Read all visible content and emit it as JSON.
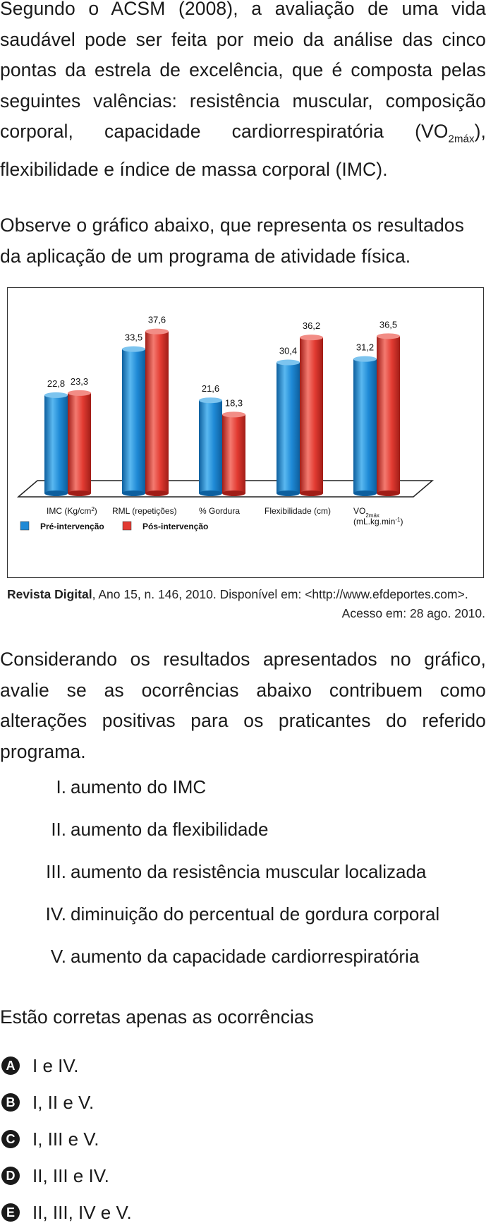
{
  "intro": {
    "p1_part1": "Segundo o ACSM (2008), a avaliação de uma vida saudável pode ser feita por meio da análise das cinco pontas da estrela de excelência, que é composta pelas seguintes valências: resistência muscular, composição corporal, capacidade cardiorrespiratória (VO",
    "p1_sub": "2máx",
    "p1_part2": "), flexibilidade e índice de massa corporal (IMC).",
    "p2": "Observe o gráfico abaixo, que representa os resultados da aplicação de um programa de atividade física."
  },
  "chart_data": {
    "type": "bar",
    "categories": [
      "IMC (Kg/cm2)",
      "RML (repetições)",
      "% Gordura",
      "Flexibilidade (cm)",
      "VO2máx (mL.kg.min-1)"
    ],
    "category_parts": [
      {
        "main": "IMC (Kg/cm",
        "sup": "2",
        "tail": ")"
      },
      {
        "main": "RML (repetições)"
      },
      {
        "main": "% Gordura"
      },
      {
        "main": "Flexibilidade (cm)"
      },
      {
        "main": "VO",
        "sub": "2máx",
        "line2": "(mL.kg.min",
        "sup": "-1",
        "tail": ")"
      }
    ],
    "series": [
      {
        "name": "Pré-intervenção",
        "values": [
          22.8,
          33.5,
          21.6,
          30.4,
          31.2
        ],
        "labels": [
          "22,8",
          "33,5",
          "21,6",
          "30,4",
          "31,2"
        ],
        "color": "#1f8ad6"
      },
      {
        "name": "Pós-intervenção",
        "values": [
          23.3,
          37.6,
          18.3,
          36.2,
          36.5
        ],
        "labels": [
          "23,3",
          "37,6",
          "18,3",
          "36,2",
          "36,5"
        ],
        "color": "#e23b32"
      }
    ],
    "ylim": [
      0,
      40
    ],
    "grid": false,
    "legend_position": "bottom-left"
  },
  "source": {
    "title": "Revista Digital",
    "rest": ", Ano 15, n. 146, 2010. Disponível em: <http://www.efdeportes.com>.",
    "line2": "Acesso em: 28 ago. 2010."
  },
  "question": {
    "p3": "Considerando os resultados apresentados no gráfico, avalie se as ocorrências abaixo contribuem como alterações positivas para os praticantes do referido programa.",
    "items": [
      {
        "num": "I.",
        "text": "aumento do IMC"
      },
      {
        "num": "II.",
        "text": "aumento da flexibilidade"
      },
      {
        "num": "III.",
        "text": "aumento da resistência muscular localizada"
      },
      {
        "num": "IV.",
        "text": "diminuição do percentual de gordura corporal"
      },
      {
        "num": "V.",
        "text": "aumento da capacidade cardiorrespiratória"
      }
    ],
    "lead": "Estão corretas apenas as ocorrências",
    "options": [
      {
        "letter": "A",
        "text": "I e IV."
      },
      {
        "letter": "B",
        "text": "I, II e V."
      },
      {
        "letter": "C",
        "text": "I, III e V."
      },
      {
        "letter": "D",
        "text": "II, III e IV."
      },
      {
        "letter": "E",
        "text": "II, III, IV e V."
      }
    ]
  }
}
